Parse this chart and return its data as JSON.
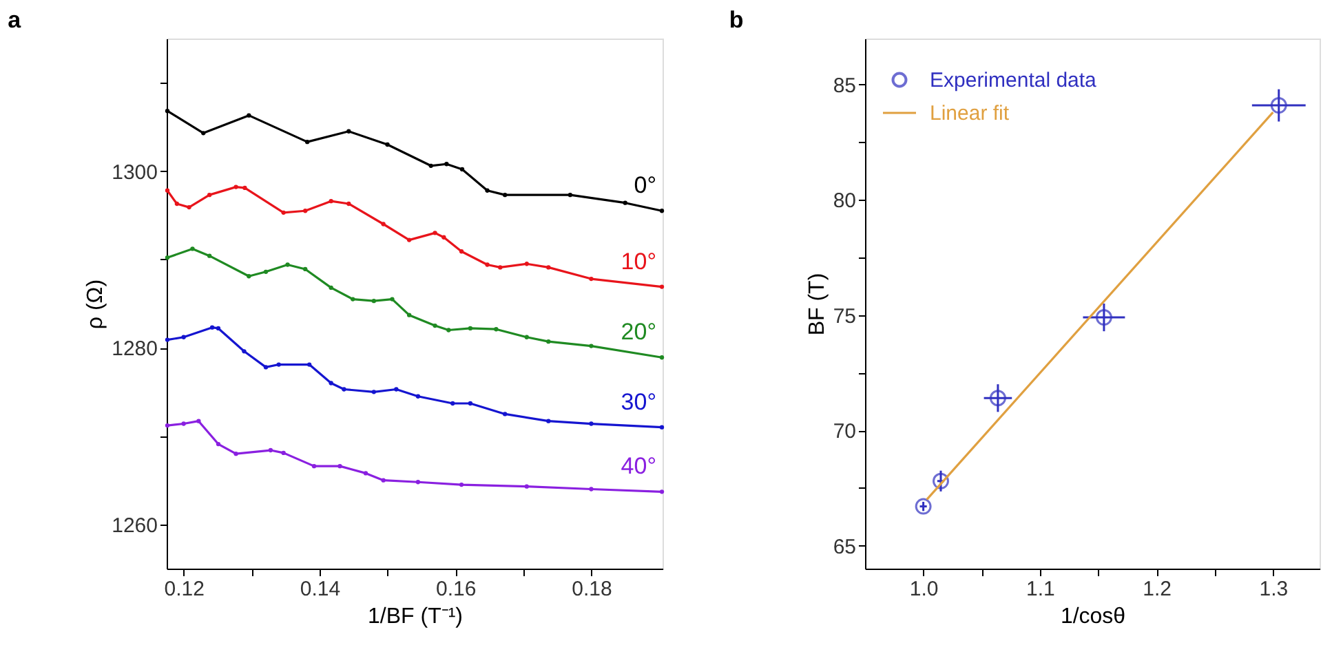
{
  "chart_data": [
    {
      "type": "line",
      "title": "a",
      "xlabel": "1/BF (T⁻¹)",
      "ylabel": "ρ (Ω)",
      "xlim": [
        0.1175,
        0.1905
      ],
      "xticks": [
        0.12,
        {
          "value": 0.13,
          "label": null
        },
        0.14,
        {
          "value": 0.15,
          "label": null
        },
        0.16,
        {
          "value": 0.17,
          "label": null
        },
        0.18
      ],
      "ylim": [
        1255,
        1315
      ],
      "yticks": [
        1260,
        {
          "value": 1270,
          "label": null
        },
        1280,
        {
          "value": 1290,
          "label": null
        },
        1300,
        {
          "value": 1310,
          "label": null
        }
      ],
      "grid": false,
      "marker": "circle",
      "line_style": "solid",
      "series": [
        {
          "name": "0°",
          "color": "#000000",
          "x": [
            0.1176,
            0.1229,
            0.1296,
            0.1382,
            0.1443,
            0.15,
            0.1564,
            0.1587,
            0.161,
            0.1647,
            0.1673,
            0.1769,
            0.185,
            0.1904
          ],
          "values": [
            1306.8,
            1304.3,
            1306.3,
            1303.3,
            1304.5,
            1303.0,
            1300.6,
            1300.8,
            1300.2,
            1297.8,
            1297.3,
            1297.3,
            1296.4,
            1295.5
          ]
        },
        {
          "name": "10°",
          "color": "#e8141b",
          "x": [
            0.1176,
            0.119,
            0.1208,
            0.1238,
            0.1277,
            0.129,
            0.1347,
            0.1379,
            0.1417,
            0.1443,
            0.1494,
            0.1532,
            0.157,
            0.1583,
            0.1609,
            0.1647,
            0.1666,
            0.1705,
            0.1737,
            0.18,
            0.1904
          ],
          "values": [
            1297.8,
            1296.3,
            1295.9,
            1297.3,
            1298.2,
            1298.1,
            1295.3,
            1295.5,
            1296.6,
            1296.3,
            1294.0,
            1292.2,
            1293.0,
            1292.5,
            1290.9,
            1289.4,
            1289.1,
            1289.5,
            1289.1,
            1287.8,
            1286.9
          ]
        },
        {
          "name": "20°",
          "color": "#1f8a22",
          "x": [
            0.1176,
            0.1213,
            0.1238,
            0.1296,
            0.1321,
            0.1353,
            0.1379,
            0.1417,
            0.1449,
            0.148,
            0.1507,
            0.1532,
            0.157,
            0.159,
            0.1622,
            0.166,
            0.1705,
            0.1737,
            0.18,
            0.1904
          ],
          "values": [
            1290.2,
            1291.2,
            1290.4,
            1288.1,
            1288.6,
            1289.4,
            1288.9,
            1286.8,
            1285.5,
            1285.3,
            1285.5,
            1283.7,
            1282.5,
            1282.0,
            1282.2,
            1282.1,
            1281.2,
            1280.7,
            1280.2,
            1278.9
          ]
        },
        {
          "name": "30°",
          "color": "#1515d0",
          "x": [
            0.1176,
            0.12,
            0.1242,
            0.1251,
            0.1289,
            0.1321,
            0.134,
            0.1385,
            0.1417,
            0.1436,
            0.148,
            0.1513,
            0.1545,
            0.1596,
            0.1622,
            0.1673,
            0.1737,
            0.18,
            0.1904
          ],
          "values": [
            1280.9,
            1281.2,
            1282.3,
            1282.2,
            1279.6,
            1277.8,
            1278.1,
            1278.1,
            1276.0,
            1275.3,
            1275.0,
            1275.3,
            1274.5,
            1273.7,
            1273.7,
            1272.5,
            1271.7,
            1271.4,
            1271.0
          ]
        },
        {
          "name": "40°",
          "color": "#8a20e0",
          "x": [
            0.1176,
            0.12,
            0.1222,
            0.1251,
            0.1277,
            0.1328,
            0.1347,
            0.1392,
            0.143,
            0.1468,
            0.1494,
            0.1545,
            0.1609,
            0.1705,
            0.18,
            0.1904
          ],
          "values": [
            1271.2,
            1271.4,
            1271.7,
            1269.1,
            1268.0,
            1268.4,
            1268.1,
            1266.6,
            1266.6,
            1265.8,
            1265.0,
            1264.8,
            1264.5,
            1264.3,
            1264.0,
            1263.7
          ]
        }
      ]
    },
    {
      "type": "scatter",
      "title": "b",
      "xlabel": "1/cosθ",
      "ylabel": "BF (T)",
      "xlim": [
        0.95,
        1.34
      ],
      "xticks": [
        {
          "value": 1,
          "label": "1.0"
        },
        {
          "value": 1.05,
          "label": null
        },
        1.1,
        {
          "value": 1.15,
          "label": null
        },
        1.2,
        {
          "value": 1.25,
          "label": null
        },
        1.3
      ],
      "ylim": [
        64,
        87
      ],
      "yticks": [
        65,
        {
          "value": 67.5,
          "label": null
        },
        70,
        {
          "value": 72.5,
          "label": null
        },
        75,
        {
          "value": 77.5,
          "label": null
        },
        80,
        {
          "value": 82.5,
          "label": null
        },
        85
      ],
      "grid": false,
      "legend": "top left",
      "series": [
        {
          "name": "Experimental data",
          "type": "scatter",
          "marker": "circle",
          "color": "#3030c0",
          "x": [
            1.0,
            1.015,
            1.064,
            1.155,
            1.305
          ],
          "values": [
            66.7,
            67.8,
            71.4,
            74.9,
            84.1
          ],
          "errors": [
            0.2,
            0.45,
            0.6,
            0.6,
            0.7
          ],
          "xerrors": [
            0.003,
            0.003,
            0.012,
            0.018,
            0.023
          ]
        },
        {
          "name": "Linear fit",
          "type": "line",
          "marker": "none",
          "color": "#e0a040",
          "x": [
            1.003,
            1.3
          ],
          "values": [
            67.0,
            83.8
          ]
        }
      ]
    }
  ]
}
